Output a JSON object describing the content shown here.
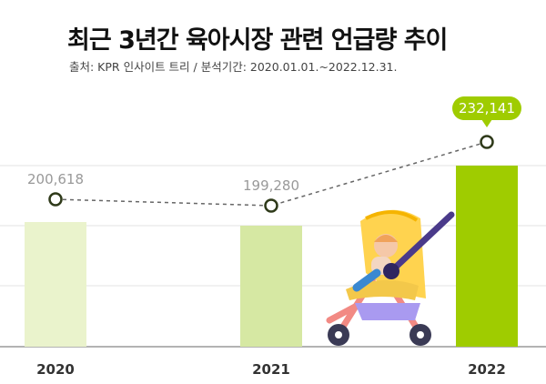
{
  "title": "최근 3년간 육아시장 관련 언급량 추이",
  "subtitle": "출처: KPR 인사이트 트리 / 분석기간: 2020.01.01.~2022.12.31.",
  "colors": {
    "bars": [
      "#eaf3cc",
      "#d6e8a3",
      "#9fcc00"
    ],
    "line": "#666666",
    "bubble": "#9fcc00",
    "grid": "#e3e3e3"
  },
  "chart_data": {
    "type": "bar",
    "categories": [
      "2020",
      "2021",
      "2022"
    ],
    "values": [
      200618,
      199280,
      232141
    ],
    "value_labels": [
      "200,618",
      "199,280",
      "232,141"
    ],
    "highlight_index": 2,
    "overlay": "dashed-line-with-markers",
    "grid": true,
    "decoration": "stroller-illustration"
  }
}
